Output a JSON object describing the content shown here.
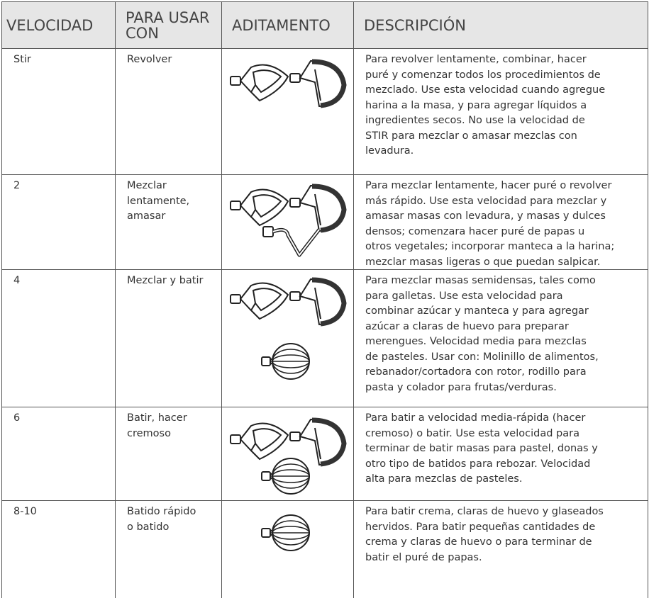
{
  "table": {
    "header": [
      [
        "VELOCIDAD"
      ],
      [
        "PARA USAR",
        "CON"
      ],
      [
        "ADITAMENTO"
      ],
      [
        "DESCRIPCIÓN"
      ]
    ],
    "rows": [
      {
        "speed": "Stir",
        "use": [
          "Revolver"
        ],
        "description": [
          "Para revolver lentamente, combinar, hacer",
          "puré y comenzar todos los procedimientos de",
          "mezclado. Use esta velocidad cuando agregue",
          "harina a la masa, y para agregar líquidos a",
          "ingredientes secos. No use la velocidad de",
          "STIR para mezclar o amasar mezclas con",
          "levadura."
        ]
      },
      {
        "speed": "2",
        "use": [
          "Mezclar",
          "lentamente,",
          "amasar"
        ],
        "description": [
          "Para mezclar lentamente, hacer puré o revolver",
          "más rápido. Use esta velocidad para mezclar y",
          "amasar masas con levadura, y masas y dulces",
          "densos; comenzara hacer puré de papas u",
          "otros vegetales; incorporar manteca a la harina;",
          "mezclar masas ligeras o que puedan salpicar."
        ]
      },
      {
        "speed": "4",
        "use": [
          "Mezclar y batir"
        ],
        "description": [
          "Para mezclar masas semidensas, tales como",
          "para galletas. Use esta velocidad para",
          "combinar azúcar y manteca y para agregar",
          "azúcar a claras de huevo para preparar",
          "merengues. Velocidad media para mezclas",
          "de pasteles. Usar con: Molinillo de alimentos,",
          "rebanador/cortadora con rotor, rodillo para",
          "pasta y colador para frutas/verduras."
        ]
      },
      {
        "speed": "6",
        "use": [
          "Batir, hacer",
          "cremoso"
        ],
        "description": [
          "Para batir a velocidad media-rápida (hacer",
          "cremoso) o batir. Use esta velocidad para",
          "terminar de batir masas para pastel, donas y",
          "otro tipo de batidos para rebozar. Velocidad",
          "alta para mezclas de pasteles."
        ]
      },
      {
        "speed": "8-10",
        "use": [
          "Batido rápido",
          "o batido"
        ],
        "description": [
          "Para batir crema, claras de huevo y glaseados",
          "hervidos. Para batir pequeñas cantidades de",
          "crema y claras de huevo o para terminar de",
          "batir el puré de papas."
        ]
      }
    ]
  }
}
